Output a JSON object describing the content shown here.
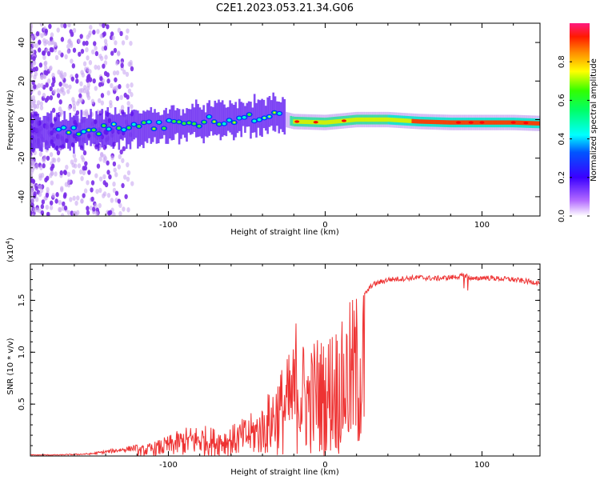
{
  "title": "C2E1.2023.053.21.34.G06",
  "chart_data": [
    {
      "type": "heatmap",
      "xlabel": "Height of straight line (km)",
      "ylabel": "Frequency (Hz)",
      "xlim": [
        -188,
        137
      ],
      "ylim": [
        -50,
        50
      ],
      "xticks": [
        -100,
        0,
        100
      ],
      "yticks": [
        -40,
        -20,
        0,
        20,
        40
      ],
      "colorbar": {
        "label": "Normalized spectral amplitude",
        "range": [
          0,
          1
        ],
        "ticks": [
          "0.0",
          "0.2",
          "0.4",
          "0.6",
          "0.8"
        ],
        "colors": [
          "#ffffff",
          "#8a2be2",
          "#0000ff",
          "#00ffff",
          "#00ff00",
          "#ffff00",
          "#ff8000",
          "#ff0000",
          "#ff1493"
        ]
      },
      "ridge": {
        "x": [
          -188,
          -160,
          -140,
          -120,
          -100,
          -80,
          -60,
          -40,
          -30,
          -25,
          -20,
          0,
          20,
          40,
          60,
          80,
          100,
          120,
          137
        ],
        "y": [
          -7,
          -6,
          -5,
          -4,
          -3,
          -1,
          0,
          2,
          3,
          0,
          -1,
          -1.5,
          0,
          0,
          -1,
          -1.5,
          -1.5,
          -1.5,
          -2
        ]
      }
    },
    {
      "type": "line",
      "xlabel": "Height of straight line (km)",
      "ylabel": "SNR (10 * v/v)",
      "multiplier": "(x10",
      "multiplier_exp": "4",
      "multiplier_close": ")",
      "color": "#ee3333",
      "xlim": [
        -188,
        137
      ],
      "ylim": [
        0,
        1.85
      ],
      "xticks": [
        -100,
        0,
        100
      ],
      "yticks": [
        "0.5",
        "1.0",
        "1.5"
      ],
      "series": [
        {
          "x": [
            -188,
            -170,
            -150,
            -140,
            -130,
            -120,
            -110,
            -100,
            -90,
            -80,
            -70,
            -60,
            -50,
            -40,
            -35,
            -30,
            -25,
            -20,
            -18,
            -15,
            -10,
            -5,
            0,
            5,
            10,
            15,
            20,
            25,
            30,
            40,
            50,
            60,
            70,
            80,
            85,
            90,
            95,
            100,
            110,
            120,
            130,
            137
          ],
          "y": [
            0.01,
            0.01,
            0.02,
            0.04,
            0.06,
            0.08,
            0.12,
            0.18,
            0.25,
            0.28,
            0.25,
            0.27,
            0.35,
            0.45,
            0.6,
            0.75,
            0.85,
            1.0,
            1.35,
            1.05,
            0.95,
            1.1,
            1.0,
            1.2,
            1.15,
            1.35,
            1.45,
            1.55,
            1.65,
            1.7,
            1.71,
            1.72,
            1.71,
            1.72,
            1.73,
            1.74,
            1.7,
            1.72,
            1.71,
            1.7,
            1.68,
            1.67
          ]
        }
      ]
    }
  ]
}
